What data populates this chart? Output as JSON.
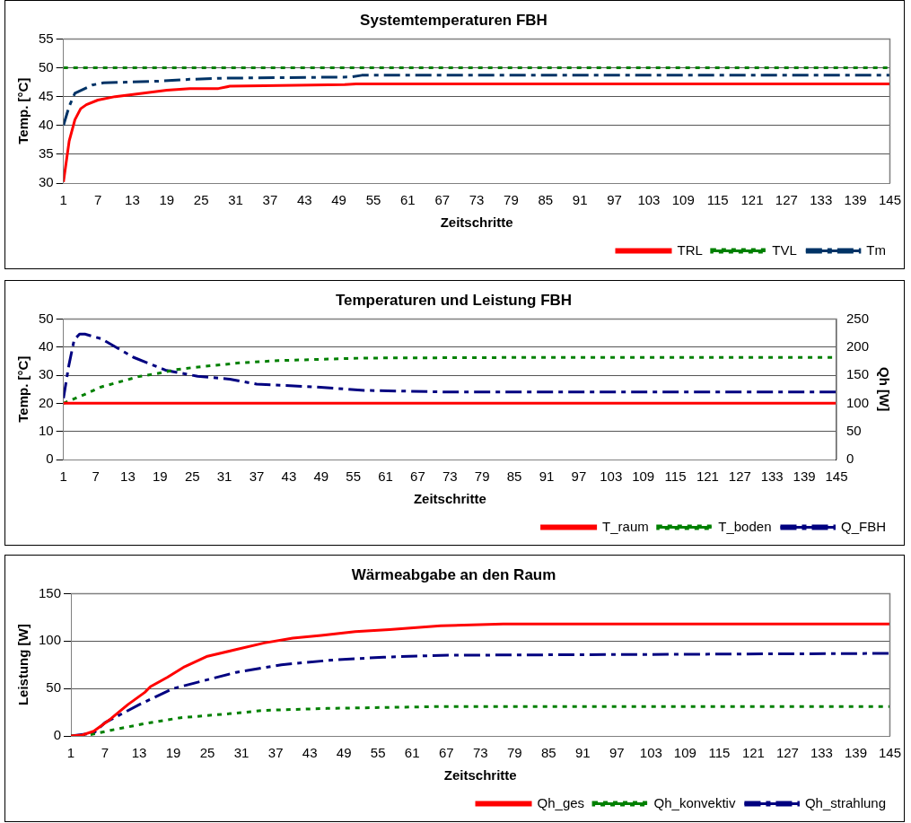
{
  "chart_data": [
    {
      "type": "line",
      "title": "Systemtemperaturen FBH",
      "xlabel": "Zeitschritte",
      "ylabel": "Temp. [°C]",
      "xlim": [
        1,
        145
      ],
      "xticks": [
        1,
        7,
        13,
        19,
        25,
        31,
        37,
        43,
        49,
        55,
        61,
        67,
        73,
        79,
        85,
        91,
        97,
        103,
        109,
        115,
        121,
        127,
        133,
        139,
        145
      ],
      "ylim": [
        30,
        55
      ],
      "yticks": [
        30,
        35,
        40,
        45,
        50,
        55
      ],
      "grid": "y",
      "legend": "bottom right",
      "marker": "none",
      "series": [
        {
          "name": "TRL",
          "color": "#ff0000",
          "line_style": "solid",
          "x": [
            1,
            2,
            3,
            4,
            5,
            7,
            10,
            15,
            19,
            23,
            28,
            30,
            36,
            50,
            52,
            145
          ],
          "values": [
            30.2,
            37.3,
            41,
            42.9,
            43.6,
            44.4,
            45,
            45.6,
            46.1,
            46.4,
            46.4,
            46.8,
            46.9,
            47.1,
            47.2,
            47.2
          ]
        },
        {
          "name": "TVL",
          "color": "#008000",
          "line_style": "dotted",
          "x": [
            1,
            145
          ],
          "values": [
            50,
            50
          ]
        },
        {
          "name": "Tm",
          "color": "#003366",
          "line_style": "dashed",
          "x": [
            1,
            2,
            3,
            6,
            8,
            12,
            18,
            23,
            29,
            51,
            53,
            145
          ],
          "values": [
            40,
            43.3,
            45.6,
            47,
            47.4,
            47.5,
            47.7,
            48,
            48.2,
            48.4,
            48.7,
            48.7
          ]
        }
      ]
    },
    {
      "type": "line",
      "title": "Temperaturen und Leistung FBH",
      "xlabel": "Zeitschritte",
      "ylabel": "Temp. [°C]",
      "y2label": "Qh [W]",
      "xlim": [
        1,
        145
      ],
      "xticks": [
        1,
        7,
        13,
        19,
        25,
        31,
        37,
        43,
        49,
        55,
        61,
        67,
        73,
        79,
        85,
        91,
        97,
        103,
        109,
        115,
        121,
        127,
        133,
        139,
        145
      ],
      "ylim": [
        0,
        50
      ],
      "yticks": [
        0,
        10,
        20,
        30,
        40,
        50
      ],
      "y2lim": [
        0,
        250
      ],
      "y2ticks": [
        0,
        50,
        100,
        150,
        200,
        250
      ],
      "grid": "y",
      "legend": "bottom right",
      "marker": "none",
      "series": [
        {
          "name": "T_raum",
          "color": "#ff0000",
          "line_style": "solid",
          "x": [
            1,
            145
          ],
          "values": [
            20,
            20
          ]
        },
        {
          "name": "T_boden",
          "color": "#008000",
          "line_style": "dotted",
          "x": [
            1,
            5,
            8,
            12,
            15,
            18,
            22,
            26,
            34,
            41,
            48,
            57,
            85,
            145
          ],
          "values": [
            20,
            23.2,
            25.8,
            27.9,
            29.5,
            30.4,
            32,
            32.9,
            34.4,
            35.2,
            35.6,
            36.1,
            36.3,
            36.3
          ]
        },
        {
          "name": "Q_FBH",
          "color": "#000080",
          "line_style": "dashed",
          "axis": "y2",
          "x": [
            1,
            2,
            3,
            4,
            5,
            8,
            14,
            20,
            26,
            32,
            37,
            48,
            57,
            73,
            145
          ],
          "values": [
            109,
            167,
            213,
            223,
            223,
            215,
            182,
            159,
            148,
            143,
            134,
            129,
            123,
            120,
            120
          ]
        }
      ]
    },
    {
      "type": "line",
      "title": "Wärmeabgabe an den Raum",
      "xlabel": "Zeitschritte",
      "ylabel": "Leistung [W]",
      "xlim": [
        1,
        145
      ],
      "xticks": [
        1,
        7,
        13,
        19,
        25,
        31,
        37,
        43,
        49,
        55,
        61,
        67,
        73,
        79,
        85,
        91,
        97,
        103,
        109,
        115,
        121,
        127,
        133,
        139,
        145
      ],
      "ylim": [
        0,
        150
      ],
      "yticks": [
        0,
        50,
        100,
        150
      ],
      "grid": "y",
      "legend": "bottom right",
      "marker": "none",
      "series": [
        {
          "name": "Qh_ges",
          "color": "#ff0000",
          "line_style": "solid",
          "x": [
            1,
            3,
            5,
            8,
            11,
            14,
            15,
            18,
            21,
            25,
            30,
            35,
            40,
            45,
            51,
            57,
            66,
            77,
            145
          ],
          "values": [
            0,
            1,
            5,
            18,
            33,
            46,
            52,
            62,
            73,
            84,
            91,
            98,
            103,
            106,
            110,
            112,
            116,
            118,
            118
          ]
        },
        {
          "name": "Qh_konvektiv",
          "color": "#008000",
          "line_style": "dotted",
          "x": [
            1,
            3,
            5,
            8,
            14,
            20,
            30,
            35,
            46,
            56,
            66,
            145
          ],
          "values": [
            0,
            0,
            2,
            6,
            13,
            19,
            24,
            27,
            29,
            30,
            31,
            31
          ]
        },
        {
          "name": "Qh_strahlung",
          "color": "#000080",
          "line_style": "dashed",
          "x": [
            1,
            5,
            7,
            13,
            19,
            30,
            38,
            47,
            56,
            66,
            145
          ],
          "values": [
            0,
            3,
            14,
            33,
            50,
            67,
            75,
            80,
            83,
            85,
            87
          ]
        }
      ]
    }
  ]
}
